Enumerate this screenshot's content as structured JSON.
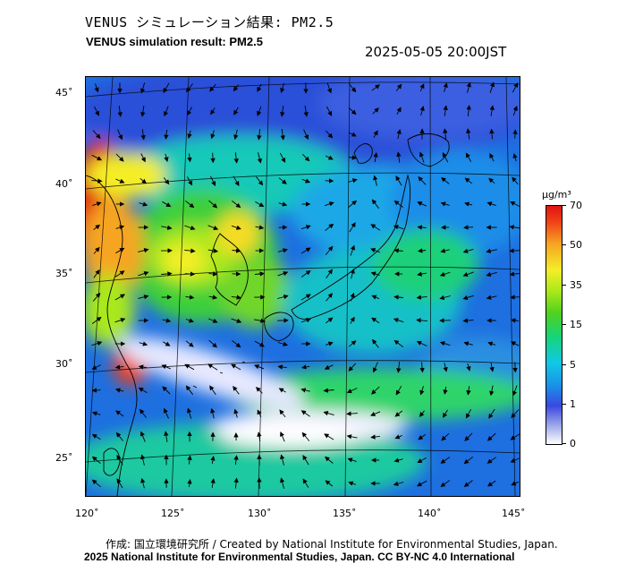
{
  "title": {
    "jp": "VENUS シミュレーション結果: PM2.5",
    "en": "VENUS simulation result: PM2.5"
  },
  "timestamp": "2025-05-05 20:00JST",
  "map": {
    "region": "East Asia (Japan, Korea, eastern China)",
    "lat_labels": [
      "45˚",
      "40˚",
      "35˚",
      "30˚",
      "25˚"
    ],
    "lon_labels": [
      "120˚",
      "125˚",
      "130˚",
      "135˚",
      "140˚",
      "145˚"
    ],
    "lon_range": [
      120,
      145
    ],
    "lat_range": [
      23,
      46
    ],
    "overlay": "wind vectors",
    "colors": {
      "very_low": "#f0f0ff",
      "low": "#3a48e0",
      "mid_low": "#1b8de8",
      "mid": "#17d47a",
      "mid_high": "#f4ee28",
      "high": "#e0140f"
    }
  },
  "colorbar": {
    "unit": "μg/m³",
    "ticks": [
      "70",
      "50",
      "35",
      "15",
      "5",
      "1",
      "0"
    ],
    "values": [
      70,
      50,
      35,
      15,
      5,
      1,
      0
    ]
  },
  "footer": {
    "credit": "作成: 国立環境研究所 / Created by National Institute for Environmental Studies, Japan.",
    "license": "2025 National Institute for Environmental Studies, Japan. CC BY-NC 4.0 International"
  }
}
